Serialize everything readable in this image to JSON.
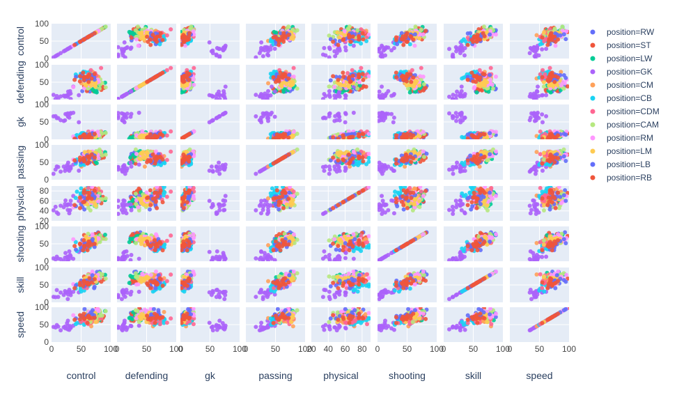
{
  "chart_data": {
    "type": "scatter",
    "title": "",
    "grid": true,
    "legend_placement": "right",
    "dimensions": [
      {
        "key": "control",
        "label": "control",
        "range": [
          0,
          100
        ],
        "ticks": [
          0,
          50,
          100
        ]
      },
      {
        "key": "defending",
        "label": "defending",
        "range": [
          0,
          100
        ],
        "ticks": [
          0,
          50,
          100
        ]
      },
      {
        "key": "gk",
        "label": "gk",
        "range": [
          0,
          100
        ],
        "ticks": [
          0,
          50,
          100
        ]
      },
      {
        "key": "passing",
        "label": "passing",
        "range": [
          0,
          100
        ],
        "ticks": [
          0,
          50,
          100
        ]
      },
      {
        "key": "physical",
        "label": "physical",
        "range": [
          20,
          90
        ],
        "ticks": [
          20,
          40,
          60,
          80
        ]
      },
      {
        "key": "shooting",
        "label": "shooting",
        "range": [
          0,
          100
        ],
        "ticks": [
          0,
          50,
          100
        ]
      },
      {
        "key": "skill",
        "label": "skill",
        "range": [
          0,
          100
        ],
        "ticks": [
          0,
          50,
          100
        ]
      },
      {
        "key": "speed",
        "label": "speed",
        "range": [
          0,
          100
        ],
        "ticks": [
          0,
          50,
          100
        ]
      }
    ],
    "series": [
      {
        "name": "position=RW",
        "color": "#636efa",
        "centroid": [
          72,
          35,
          10,
          68,
          62,
          65,
          72,
          78
        ]
      },
      {
        "name": "position=ST",
        "color": "#ef553b",
        "centroid": [
          70,
          30,
          10,
          60,
          68,
          70,
          66,
          72
        ]
      },
      {
        "name": "position=LW",
        "color": "#00cc96",
        "centroid": [
          72,
          35,
          10,
          68,
          62,
          65,
          72,
          78
        ]
      },
      {
        "name": "position=GK",
        "color": "#ab63fa",
        "centroid": [
          25,
          15,
          68,
          32,
          45,
          15,
          25,
          45
        ]
      },
      {
        "name": "position=CM",
        "color": "#ffa15a",
        "centroid": [
          68,
          62,
          10,
          68,
          66,
          58,
          66,
          65
        ]
      },
      {
        "name": "position=CB",
        "color": "#19d3f3",
        "centroid": [
          50,
          68,
          10,
          48,
          72,
          35,
          45,
          58
        ]
      },
      {
        "name": "position=CDM",
        "color": "#ff6692",
        "centroid": [
          65,
          68,
          10,
          64,
          70,
          52,
          60,
          62
        ]
      },
      {
        "name": "position=CAM",
        "color": "#b6e880",
        "centroid": [
          72,
          40,
          10,
          70,
          58,
          64,
          72,
          72
        ]
      },
      {
        "name": "position=RM",
        "color": "#ff97ff",
        "centroid": [
          68,
          45,
          10,
          66,
          60,
          60,
          68,
          75
        ]
      },
      {
        "name": "position=LM",
        "color": "#fecb52",
        "centroid": [
          68,
          45,
          10,
          66,
          60,
          60,
          68,
          75
        ]
      },
      {
        "name": "position=LB",
        "color": "#636efa",
        "centroid": [
          60,
          62,
          10,
          60,
          66,
          45,
          58,
          72
        ]
      },
      {
        "name": "position=RB",
        "color": "#ef553b",
        "centroid": [
          60,
          62,
          10,
          60,
          66,
          45,
          58,
          72
        ]
      }
    ]
  }
}
